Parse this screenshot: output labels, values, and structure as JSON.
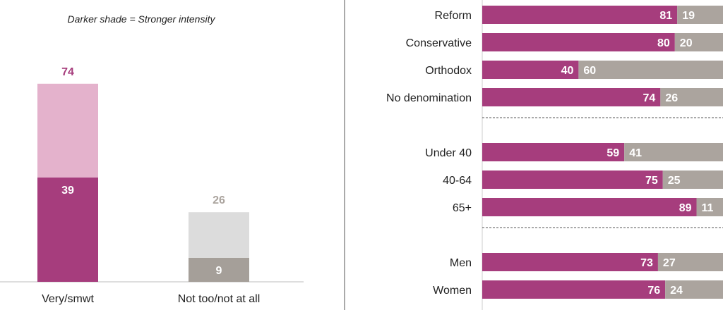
{
  "colors": {
    "strong_very": "#a63d7d",
    "light_very": "#e4b2cc",
    "strong_not": "#a59f99",
    "light_not": "#dcdcdc",
    "bar_yes": "#a63d7d",
    "bar_no": "#aba49e",
    "label_very": "#a63d7d",
    "label_not": "#aba49e"
  },
  "chart_data": [
    {
      "type": "bar",
      "stacked": true,
      "annotation": "Darker shade = Stronger intensity",
      "categories": [
        "Very/smwt",
        "Not too/not at all"
      ],
      "totals": [
        74,
        26
      ],
      "series": [
        {
          "name": "Stronger intensity",
          "values": [
            39,
            9
          ]
        },
        {
          "name": "",
          "values": [
            35,
            17
          ]
        }
      ],
      "ylim": [
        0,
        100
      ],
      "grid": false
    },
    {
      "type": "bar",
      "orientation": "horizontal",
      "stacked": true,
      "scale_max": 100,
      "groups": [
        {
          "rows": [
            {
              "label": "Reform",
              "values": [
                81,
                19
              ]
            },
            {
              "label": "Conservative",
              "values": [
                80,
                20
              ]
            },
            {
              "label": "Orthodox",
              "values": [
                40,
                60
              ]
            },
            {
              "label": "No denomination",
              "values": [
                74,
                26
              ]
            }
          ]
        },
        {
          "rows": [
            {
              "label": "Under 40",
              "values": [
                59,
                41
              ]
            },
            {
              "label": "40-64",
              "values": [
                75,
                25
              ]
            },
            {
              "label": "65+",
              "values": [
                89,
                11
              ]
            }
          ]
        },
        {
          "rows": [
            {
              "label": "Men",
              "values": [
                73,
                27
              ]
            },
            {
              "label": "Women",
              "values": [
                76,
                24
              ]
            }
          ]
        }
      ],
      "grid": false
    }
  ]
}
